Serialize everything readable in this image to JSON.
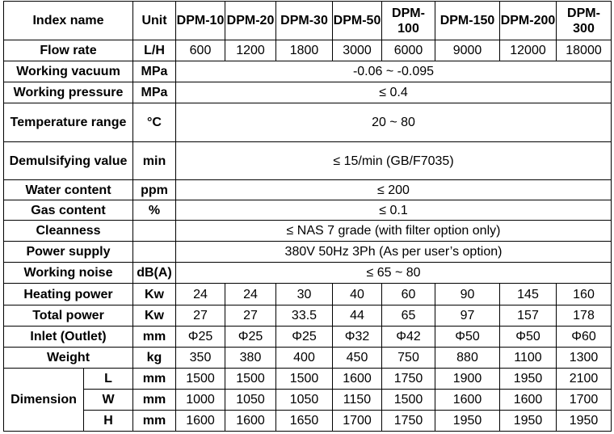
{
  "header": {
    "index": "Index name",
    "unit": "Unit",
    "models": [
      "DPM-10",
      "DPM-20",
      "DPM-30",
      "DPM-50",
      "DPM-100",
      "DPM-150",
      "DPM-200",
      "DPM-300"
    ]
  },
  "rows": [
    {
      "name": "Flow rate",
      "unit": "L/H",
      "values": [
        "600",
        "1200",
        "1800",
        "3000",
        "6000",
        "9000",
        "12000",
        "18000"
      ]
    },
    {
      "name": "Working vacuum",
      "unit": "MPa",
      "merged": "-0.06 ~ -0.095"
    },
    {
      "name": "Working pressure",
      "unit": "MPa",
      "merged": "≤ 0.4"
    },
    {
      "name": "Temperature range",
      "unit": "°C",
      "merged": "20 ~ 80"
    },
    {
      "name": "Demulsifying value",
      "unit": "min",
      "merged": "≤ 15/min (GB/F7035)"
    },
    {
      "name": "Water content",
      "unit": "ppm",
      "merged": "≤ 200"
    },
    {
      "name": "Gas content",
      "unit": "%",
      "merged": "≤ 0.1"
    },
    {
      "name": "Cleanness",
      "unit": "",
      "merged": "≤ NAS 7 grade (with filter option only)"
    },
    {
      "name": "Power supply",
      "unit": "",
      "merged": "380V 50Hz 3Ph (As per user’s option)"
    },
    {
      "name": "Working noise",
      "unit": "dB(A)",
      "merged": "≤ 65 ~ 80"
    },
    {
      "name": "Heating power",
      "unit": "Kw",
      "values": [
        "24",
        "24",
        "30",
        "40",
        "60",
        "90",
        "145",
        "160"
      ]
    },
    {
      "name": "Total power",
      "unit": "Kw",
      "values": [
        "27",
        "27",
        "33.5",
        "44",
        "65",
        "97",
        "157",
        "178"
      ]
    },
    {
      "name": "Inlet (Outlet)",
      "unit": "mm",
      "values": [
        "Φ25",
        "Φ25",
        "Φ25",
        "Φ32",
        "Φ42",
        "Φ50",
        "Φ50",
        "Φ60"
      ]
    },
    {
      "name": "Weight",
      "unit": "kg",
      "values": [
        "350",
        "380",
        "400",
        "450",
        "750",
        "880",
        "1100",
        "1300"
      ]
    }
  ],
  "dimension": {
    "label": "Dimension",
    "rows": [
      {
        "sub": "L",
        "unit": "mm",
        "values": [
          "1500",
          "1500",
          "1500",
          "1600",
          "1750",
          "1900",
          "1950",
          "2100"
        ]
      },
      {
        "sub": "W",
        "unit": "mm",
        "values": [
          "1000",
          "1050",
          "1050",
          "1150",
          "1500",
          "1600",
          "1600",
          "1700"
        ]
      },
      {
        "sub": "H",
        "unit": "mm",
        "values": [
          "1600",
          "1600",
          "1650",
          "1700",
          "1750",
          "1950",
          "1950",
          "1950"
        ]
      }
    ]
  }
}
